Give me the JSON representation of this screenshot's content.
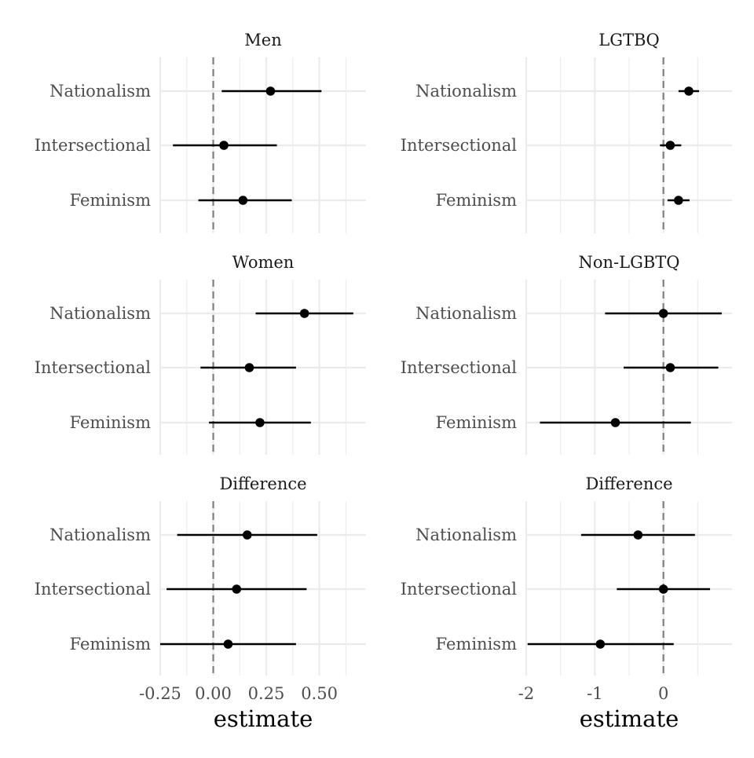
{
  "chart_data": [
    {
      "type": "pointrange",
      "title": "Men",
      "categories": [
        "Nationalism",
        "Intersectional",
        "Feminism"
      ],
      "estimate": [
        0.27,
        0.05,
        0.14
      ],
      "lower": [
        0.04,
        -0.19,
        -0.07
      ],
      "upper": [
        0.51,
        0.3,
        0.37
      ],
      "xlim": [
        -0.25,
        0.72
      ],
      "xticks": [
        -0.25,
        0.0,
        0.25,
        0.5
      ],
      "xticklabels": [
        "-0.25",
        "0.00",
        "0.25",
        "0.50"
      ],
      "reference_line": 0,
      "show_x_axis": false
    },
    {
      "type": "pointrange",
      "title": "LGTBQ",
      "categories": [
        "Nationalism",
        "Intersectional",
        "Feminism"
      ],
      "estimate": [
        0.37,
        0.1,
        0.22
      ],
      "lower": [
        0.22,
        -0.05,
        0.06
      ],
      "upper": [
        0.52,
        0.26,
        0.38
      ],
      "xlim": [
        -2.0,
        1.0
      ],
      "xticks": [
        -2,
        -1,
        0
      ],
      "xticklabels": [
        "-2",
        "-1",
        "0"
      ],
      "reference_line": 0,
      "show_x_axis": false
    },
    {
      "type": "pointrange",
      "title": "Women",
      "categories": [
        "Nationalism",
        "Intersectional",
        "Feminism"
      ],
      "estimate": [
        0.43,
        0.17,
        0.22
      ],
      "lower": [
        0.2,
        -0.06,
        -0.02
      ],
      "upper": [
        0.66,
        0.39,
        0.46
      ],
      "xlim": [
        -0.25,
        0.72
      ],
      "xticks": [
        -0.25,
        0.0,
        0.25,
        0.5
      ],
      "xticklabels": [
        "-0.25",
        "0.00",
        "0.25",
        "0.50"
      ],
      "reference_line": 0,
      "show_x_axis": false
    },
    {
      "type": "pointrange",
      "title": "Non-LGBTQ",
      "categories": [
        "Nationalism",
        "Intersectional",
        "Feminism"
      ],
      "estimate": [
        0.0,
        0.1,
        -0.7
      ],
      "lower": [
        -0.85,
        -0.58,
        -1.8
      ],
      "upper": [
        0.85,
        0.8,
        0.4
      ],
      "xlim": [
        -2.0,
        1.0
      ],
      "xticks": [
        -2,
        -1,
        0
      ],
      "xticklabels": [
        "-2",
        "-1",
        "0"
      ],
      "reference_line": 0,
      "show_x_axis": false
    },
    {
      "type": "pointrange",
      "title": "Difference",
      "categories": [
        "Nationalism",
        "Intersectional",
        "Feminism"
      ],
      "estimate": [
        0.16,
        0.11,
        0.07
      ],
      "lower": [
        -0.17,
        -0.22,
        -0.25
      ],
      "upper": [
        0.49,
        0.44,
        0.39
      ],
      "xlim": [
        -0.25,
        0.72
      ],
      "xticks": [
        -0.25,
        0.0,
        0.25,
        0.5
      ],
      "xticklabels": [
        "-0.25",
        "0.00",
        "0.25",
        "0.50"
      ],
      "xlabel": "estimate",
      "reference_line": 0,
      "show_x_axis": true
    },
    {
      "type": "pointrange",
      "title": "Difference",
      "categories": [
        "Nationalism",
        "Intersectional",
        "Feminism"
      ],
      "estimate": [
        -0.37,
        0.0,
        -0.92
      ],
      "lower": [
        -1.2,
        -0.68,
        -1.98
      ],
      "upper": [
        0.46,
        0.68,
        0.15
      ],
      "xlim": [
        -2.0,
        1.0
      ],
      "xticks": [
        -2,
        -1,
        0
      ],
      "xticklabels": [
        "-2",
        "-1",
        "0"
      ],
      "xlabel": "estimate",
      "reference_line": 0,
      "show_x_axis": true
    }
  ],
  "style": {
    "point_color": "#000000",
    "bar_color": "#000000",
    "reference_line_color": "#7f7f7f",
    "grid_color": "#ebebeb",
    "label_color": "#4d4d4d",
    "background": "#ffffff"
  }
}
